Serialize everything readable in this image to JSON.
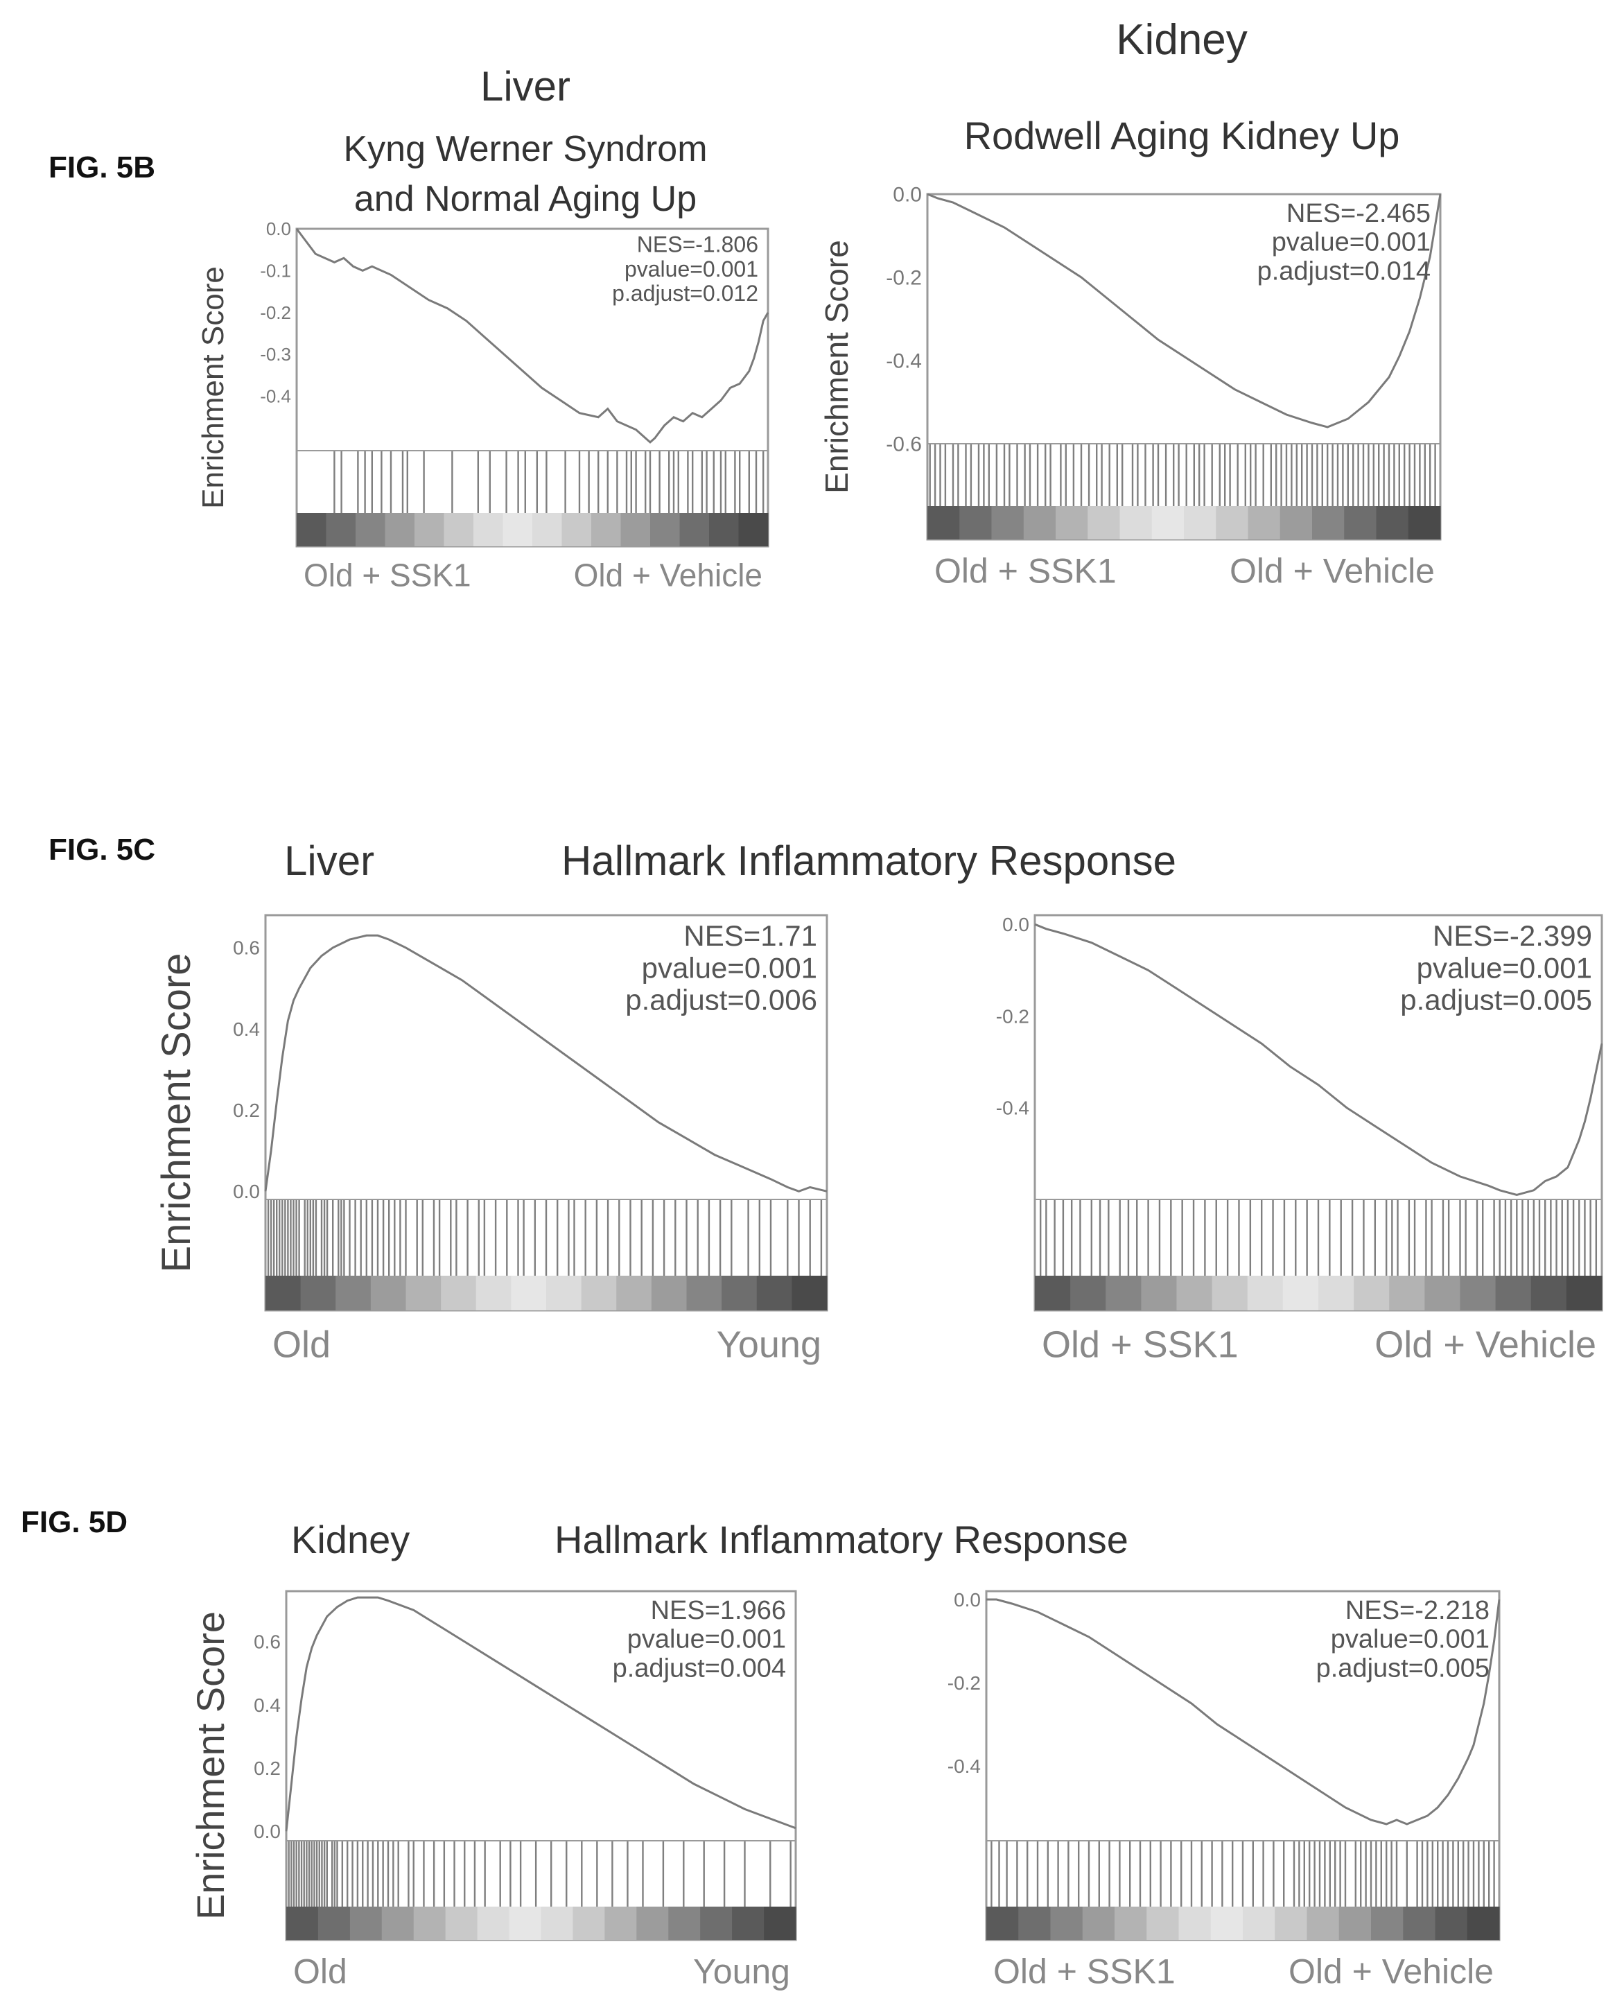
{
  "figures": [
    {
      "label": "FIG. 5B"
    },
    {
      "label": "FIG. 5C",
      "tissue": "Liver",
      "pathway": "Hallmark Inflammatory Response"
    },
    {
      "label": "FIG. 5D",
      "tissue": "Kidney",
      "pathway": "Hallmark Inflammatory Response"
    }
  ],
  "chart_data": [
    {
      "type": "line",
      "figure": "FIG. 5B",
      "title": "Liver",
      "subtitle": "Kyng Werner Syndrom and Normal Aging Up",
      "title_lines": [
        "Kyng Werner Syndrom",
        "and Normal Aging Up"
      ],
      "ylabel": "Enrichment Score",
      "ylim": [
        -0.53,
        0.0
      ],
      "yticks": [
        "0.0",
        "-0.1",
        "-0.2",
        "-0.3",
        "-0.4"
      ],
      "ytick_values": [
        0.0,
        -0.1,
        -0.2,
        -0.3,
        -0.4
      ],
      "group_labels": [
        "Old + SSK1",
        "Old + Vehicle"
      ],
      "annotations": [
        "NES=-1.806",
        "pvalue=0.001",
        "p.adjust=0.012"
      ],
      "series": [
        {
          "x": [
            0,
            2,
            4,
            6,
            8,
            10,
            12,
            14,
            16,
            18,
            20,
            24,
            28,
            32,
            36,
            40,
            44,
            48,
            52,
            56,
            60,
            64,
            66,
            68,
            70,
            72,
            74,
            75,
            76,
            78,
            80,
            82,
            84,
            86,
            88,
            90,
            92,
            94,
            96,
            97,
            98,
            99,
            100
          ],
          "y": [
            0,
            -0.03,
            -0.06,
            -0.07,
            -0.08,
            -0.07,
            -0.09,
            -0.1,
            -0.09,
            -0.1,
            -0.11,
            -0.14,
            -0.17,
            -0.19,
            -0.22,
            -0.26,
            -0.3,
            -0.34,
            -0.38,
            -0.41,
            -0.44,
            -0.45,
            -0.43,
            -0.46,
            -0.47,
            -0.48,
            -0.5,
            -0.51,
            -0.5,
            -0.47,
            -0.45,
            -0.46,
            -0.44,
            -0.45,
            -0.43,
            -0.41,
            -0.38,
            -0.37,
            -0.34,
            -0.31,
            -0.27,
            -0.22,
            -0.2
          ]
        }
      ],
      "hits": [
        8,
        9.5,
        13,
        14.5,
        16,
        18,
        20,
        22.5,
        23.5,
        27,
        33,
        38.5,
        41,
        44.5,
        47,
        48.5,
        51,
        53,
        57,
        60,
        62,
        64,
        66,
        68,
        70,
        71,
        72,
        74,
        75,
        77,
        79,
        80,
        81,
        83,
        84,
        86,
        87,
        88.5,
        90,
        91,
        93,
        94,
        96,
        97.5,
        99
      ]
    },
    {
      "type": "line",
      "figure": "FIG. 5B",
      "title": "Kidney",
      "subtitle": "Rodwell Aging Kidney Up",
      "ylabel": "Enrichment Score",
      "ylim": [
        -0.6,
        0.0
      ],
      "yticks": [
        "0.0",
        "-0.2",
        "-0.4",
        "-0.6"
      ],
      "ytick_values": [
        0.0,
        -0.2,
        -0.4,
        -0.6
      ],
      "group_labels": [
        "Old + SSK1",
        "Old + Vehicle"
      ],
      "annotations": [
        "NES=-2.465",
        "pvalue=0.001",
        "p.adjust=0.014"
      ],
      "series": [
        {
          "x": [
            0,
            2,
            5,
            10,
            15,
            20,
            25,
            30,
            35,
            40,
            45,
            50,
            55,
            60,
            65,
            70,
            75,
            78,
            80,
            82,
            84,
            86,
            88,
            90,
            92,
            94,
            96,
            98,
            100
          ],
          "y": [
            0,
            -0.01,
            -0.02,
            -0.05,
            -0.08,
            -0.12,
            -0.16,
            -0.2,
            -0.25,
            -0.3,
            -0.35,
            -0.39,
            -0.43,
            -0.47,
            -0.5,
            -0.53,
            -0.55,
            -0.56,
            -0.55,
            -0.54,
            -0.52,
            -0.5,
            -0.47,
            -0.44,
            -0.39,
            -0.33,
            -0.25,
            -0.15,
            0
          ]
        }
      ],
      "hits": [
        0.5,
        1.5,
        2.5,
        3.5,
        5,
        6,
        7.5,
        8.5,
        10,
        11,
        12,
        13.5,
        15,
        16,
        17.5,
        19,
        20,
        21.5,
        23,
        24,
        26,
        27,
        28.5,
        30,
        31.5,
        33,
        34,
        35.5,
        37,
        38,
        40,
        41,
        42.5,
        44,
        45,
        46.5,
        48,
        49,
        50.5,
        52,
        53,
        54,
        55.5,
        57,
        58,
        59,
        60.5,
        62,
        63,
        64,
        65.5,
        67,
        68,
        69,
        70,
        71,
        72,
        73,
        74,
        75,
        76,
        77,
        78,
        79,
        80,
        81,
        82,
        83,
        84,
        85,
        86,
        87,
        88,
        89,
        90,
        91,
        92,
        93,
        94,
        95,
        96,
        97,
        98,
        99
      ]
    },
    {
      "type": "line",
      "figure": "FIG. 5C",
      "title": "",
      "subtitle": "",
      "ylabel": "Enrichment Score",
      "ylim": [
        -0.02,
        0.68
      ],
      "yticks": [
        "0.6",
        "0.4",
        "0.2",
        "0.0"
      ],
      "ytick_values": [
        0.6,
        0.4,
        0.2,
        0.0
      ],
      "group_labels": [
        "Old",
        "Young"
      ],
      "annotations": [
        "NES=1.71",
        "pvalue=0.001",
        "p.adjust=0.006"
      ],
      "series": [
        {
          "x": [
            0,
            1,
            2,
            3,
            4,
            5,
            6,
            8,
            10,
            12,
            15,
            18,
            20,
            22,
            25,
            30,
            35,
            40,
            45,
            50,
            55,
            60,
            65,
            70,
            75,
            80,
            85,
            90,
            93,
            95,
            97,
            100
          ],
          "y": [
            0,
            0.1,
            0.22,
            0.33,
            0.42,
            0.47,
            0.5,
            0.55,
            0.58,
            0.6,
            0.62,
            0.63,
            0.63,
            0.62,
            0.6,
            0.56,
            0.52,
            0.47,
            0.42,
            0.37,
            0.32,
            0.27,
            0.22,
            0.17,
            0.13,
            0.09,
            0.06,
            0.03,
            0.01,
            0.0,
            0.01,
            0.0
          ]
        }
      ],
      "hits": [
        0.5,
        1,
        1.5,
        2,
        2.5,
        3,
        3.5,
        4,
        4.5,
        5,
        5.5,
        6,
        7,
        7.5,
        8,
        8.5,
        9,
        10,
        10.5,
        11,
        12,
        13,
        13.5,
        14,
        15,
        16,
        17,
        18,
        19,
        20,
        21,
        22,
        23,
        24,
        25,
        27,
        28,
        30,
        31,
        33,
        34,
        36,
        38,
        39,
        41,
        43,
        45,
        46,
        48,
        50,
        52,
        54,
        55,
        57,
        59,
        61,
        63,
        65,
        67,
        69,
        71,
        73,
        75,
        77,
        79,
        81,
        83,
        86,
        88,
        90,
        93,
        95,
        97,
        99
      ]
    },
    {
      "type": "line",
      "figure": "FIG. 5C",
      "title": "",
      "subtitle": "",
      "ylabel": "",
      "ylim": [
        -0.6,
        0.02
      ],
      "yticks": [
        "0.0",
        "-0.2",
        "-0.4"
      ],
      "ytick_values": [
        0.0,
        -0.2,
        -0.4
      ],
      "group_labels": [
        "Old + SSK1",
        "Old + Vehicle"
      ],
      "annotations": [
        "NES=-2.399",
        "pvalue=0.001",
        "p.adjust=0.005"
      ],
      "series": [
        {
          "x": [
            0,
            2,
            5,
            10,
            15,
            20,
            25,
            30,
            35,
            40,
            45,
            50,
            55,
            60,
            65,
            70,
            75,
            80,
            82,
            85,
            88,
            90,
            92,
            94,
            95,
            96,
            97,
            98,
            99,
            100
          ],
          "y": [
            0,
            -0.01,
            -0.02,
            -0.04,
            -0.07,
            -0.1,
            -0.14,
            -0.18,
            -0.22,
            -0.26,
            -0.31,
            -0.35,
            -0.4,
            -0.44,
            -0.48,
            -0.52,
            -0.55,
            -0.57,
            -0.58,
            -0.59,
            -0.58,
            -0.56,
            -0.55,
            -0.53,
            -0.5,
            -0.47,
            -0.43,
            -0.38,
            -0.32,
            -0.26
          ]
        }
      ],
      "hits": [
        1,
        2,
        3.5,
        5,
        6.5,
        8,
        10,
        11.5,
        13,
        15,
        16.5,
        18,
        20,
        22,
        24,
        26,
        28,
        30,
        32,
        34,
        36,
        38,
        40,
        42,
        44,
        46,
        48,
        50,
        52,
        54,
        56,
        58,
        60,
        62,
        63,
        64,
        66,
        67,
        69,
        70,
        72,
        73,
        75,
        76,
        78,
        79,
        81,
        82,
        83,
        84,
        85,
        86,
        87,
        88,
        89,
        90,
        91,
        92,
        93,
        94,
        95,
        96,
        97,
        98,
        99
      ]
    },
    {
      "type": "line",
      "figure": "FIG. 5D",
      "title": "",
      "subtitle": "",
      "ylabel": "Enrichment Score",
      "ylim": [
        -0.03,
        0.76
      ],
      "yticks": [
        "0.6",
        "0.4",
        "0.2",
        "0.0"
      ],
      "ytick_values": [
        0.6,
        0.4,
        0.2,
        0.0
      ],
      "group_labels": [
        "Old",
        "Young"
      ],
      "annotations": [
        "NES=1.966",
        "pvalue=0.001",
        "p.adjust=0.004"
      ],
      "series": [
        {
          "x": [
            0,
            1,
            2,
            3,
            4,
            5,
            6,
            8,
            10,
            12,
            14,
            16,
            18,
            20,
            25,
            30,
            35,
            40,
            45,
            50,
            55,
            60,
            65,
            70,
            75,
            80,
            85,
            90,
            95,
            100
          ],
          "y": [
            0,
            0.15,
            0.3,
            0.42,
            0.52,
            0.58,
            0.62,
            0.68,
            0.71,
            0.73,
            0.74,
            0.74,
            0.74,
            0.73,
            0.7,
            0.65,
            0.6,
            0.55,
            0.5,
            0.45,
            0.4,
            0.35,
            0.3,
            0.25,
            0.2,
            0.15,
            0.11,
            0.07,
            0.04,
            0.01
          ]
        }
      ],
      "hits": [
        0.5,
        1,
        1.5,
        2,
        2.5,
        3,
        3.5,
        4,
        4.5,
        5,
        5.5,
        6,
        6.5,
        7,
        7.5,
        8,
        9,
        9.5,
        10,
        11,
        12,
        13,
        14,
        15,
        16,
        17,
        18,
        19,
        20,
        21,
        22,
        24,
        25,
        27,
        29,
        31,
        33,
        35,
        37,
        39,
        42,
        44,
        46,
        49,
        52,
        55,
        58,
        61,
        64,
        67,
        70,
        74,
        78,
        82,
        86,
        90,
        95,
        99
      ]
    },
    {
      "type": "line",
      "figure": "FIG. 5D",
      "title": "",
      "subtitle": "",
      "ylabel": "",
      "ylim": [
        -0.58,
        0.02
      ],
      "yticks": [
        "0.0",
        "-0.2",
        "-0.4"
      ],
      "ytick_values": [
        0.0,
        -0.2,
        -0.4
      ],
      "group_labels": [
        "Old + SSK1",
        "Old + Vehicle"
      ],
      "annotations": [
        "NES=-2.218",
        "pvalue=0.001",
        "p.adjust=0.005"
      ],
      "series": [
        {
          "x": [
            0,
            2,
            5,
            10,
            15,
            20,
            25,
            30,
            35,
            40,
            45,
            50,
            55,
            60,
            65,
            70,
            75,
            78,
            80,
            82,
            84,
            86,
            88,
            90,
            92,
            94,
            95,
            96,
            97,
            98,
            99,
            100
          ],
          "y": [
            0,
            0.0,
            -0.01,
            -0.03,
            -0.06,
            -0.09,
            -0.13,
            -0.17,
            -0.21,
            -0.25,
            -0.3,
            -0.34,
            -0.38,
            -0.42,
            -0.46,
            -0.5,
            -0.53,
            -0.54,
            -0.53,
            -0.54,
            -0.53,
            -0.52,
            -0.5,
            -0.47,
            -0.43,
            -0.38,
            -0.35,
            -0.3,
            -0.25,
            -0.18,
            -0.1,
            0.0
          ]
        }
      ],
      "hits": [
        1,
        2.5,
        4,
        6,
        8,
        10,
        12,
        14,
        16,
        18,
        20,
        22,
        24,
        26,
        28,
        30,
        32,
        34,
        36,
        38,
        40,
        42,
        44,
        46,
        48,
        50,
        52,
        54,
        56,
        58,
        60,
        61,
        62,
        63,
        64,
        65,
        66,
        67,
        68,
        69,
        70,
        72,
        73,
        74,
        75,
        76,
        77,
        78,
        79,
        80,
        82,
        84,
        85,
        86,
        87,
        88,
        89,
        90,
        91,
        92,
        93,
        94,
        95,
        96,
        97,
        98,
        99
      ]
    }
  ]
}
